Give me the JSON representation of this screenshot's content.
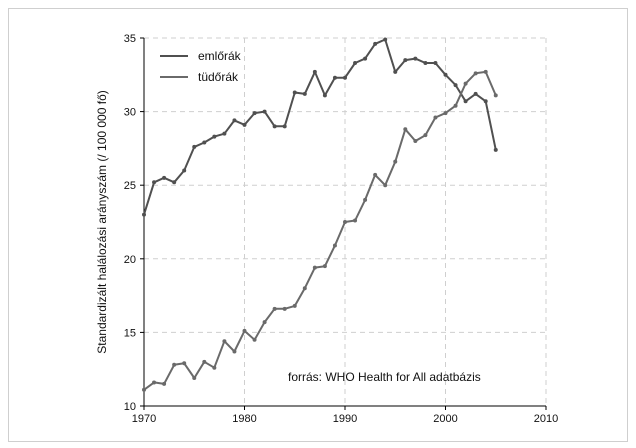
{
  "chart_data": {
    "type": "line",
    "xlim": [
      1970,
      2010
    ],
    "ylim": [
      10,
      35
    ],
    "xticks": [
      1970,
      1980,
      1990,
      2000,
      2010
    ],
    "yticks": [
      10,
      15,
      20,
      25,
      30,
      35
    ],
    "ylabel": "Standardizált halálozási arányszám (/ 100 000 fő)",
    "annotation": "forrás: WHO Health for All adatbázis",
    "grid": true,
    "legend_position": "top-left",
    "series": [
      {
        "name": "emlőrák",
        "color": "#505050",
        "x": [
          1970,
          1971,
          1972,
          1973,
          1974,
          1975,
          1976,
          1977,
          1978,
          1979,
          1980,
          1981,
          1982,
          1983,
          1984,
          1985,
          1986,
          1987,
          1988,
          1989,
          1990,
          1991,
          1992,
          1993,
          1994,
          1995,
          1996,
          1997,
          1998,
          1999,
          2000,
          2001,
          2002,
          2003,
          2004,
          2005
        ],
        "values": [
          23.0,
          25.2,
          25.5,
          25.2,
          26.0,
          27.6,
          27.9,
          28.3,
          28.5,
          29.4,
          29.1,
          29.9,
          30.0,
          29.0,
          29.0,
          31.3,
          31.2,
          32.7,
          31.1,
          32.3,
          32.3,
          33.3,
          33.6,
          34.6,
          34.9,
          32.7,
          33.5,
          33.6,
          33.3,
          33.3,
          32.5,
          31.8,
          30.7,
          31.2,
          30.7,
          27.4
        ]
      },
      {
        "name": "tüdőrák",
        "color": "#6a6a6a",
        "x": [
          1970,
          1971,
          1972,
          1973,
          1974,
          1975,
          1976,
          1977,
          1978,
          1979,
          1980,
          1981,
          1982,
          1983,
          1984,
          1985,
          1986,
          1987,
          1988,
          1989,
          1990,
          1991,
          1992,
          1993,
          1994,
          1995,
          1996,
          1997,
          1998,
          1999,
          2000,
          2001,
          2002,
          2003,
          2004,
          2005
        ],
        "values": [
          11.1,
          11.6,
          11.5,
          12.8,
          12.9,
          11.9,
          13.0,
          12.6,
          14.4,
          13.7,
          15.1,
          14.5,
          15.7,
          16.6,
          16.6,
          16.8,
          18.0,
          19.4,
          19.5,
          20.9,
          22.5,
          22.6,
          24.0,
          25.7,
          25.0,
          26.6,
          28.8,
          28.0,
          28.4,
          29.6,
          29.9,
          30.4,
          31.9,
          32.6,
          32.7,
          31.1
        ]
      }
    ]
  }
}
